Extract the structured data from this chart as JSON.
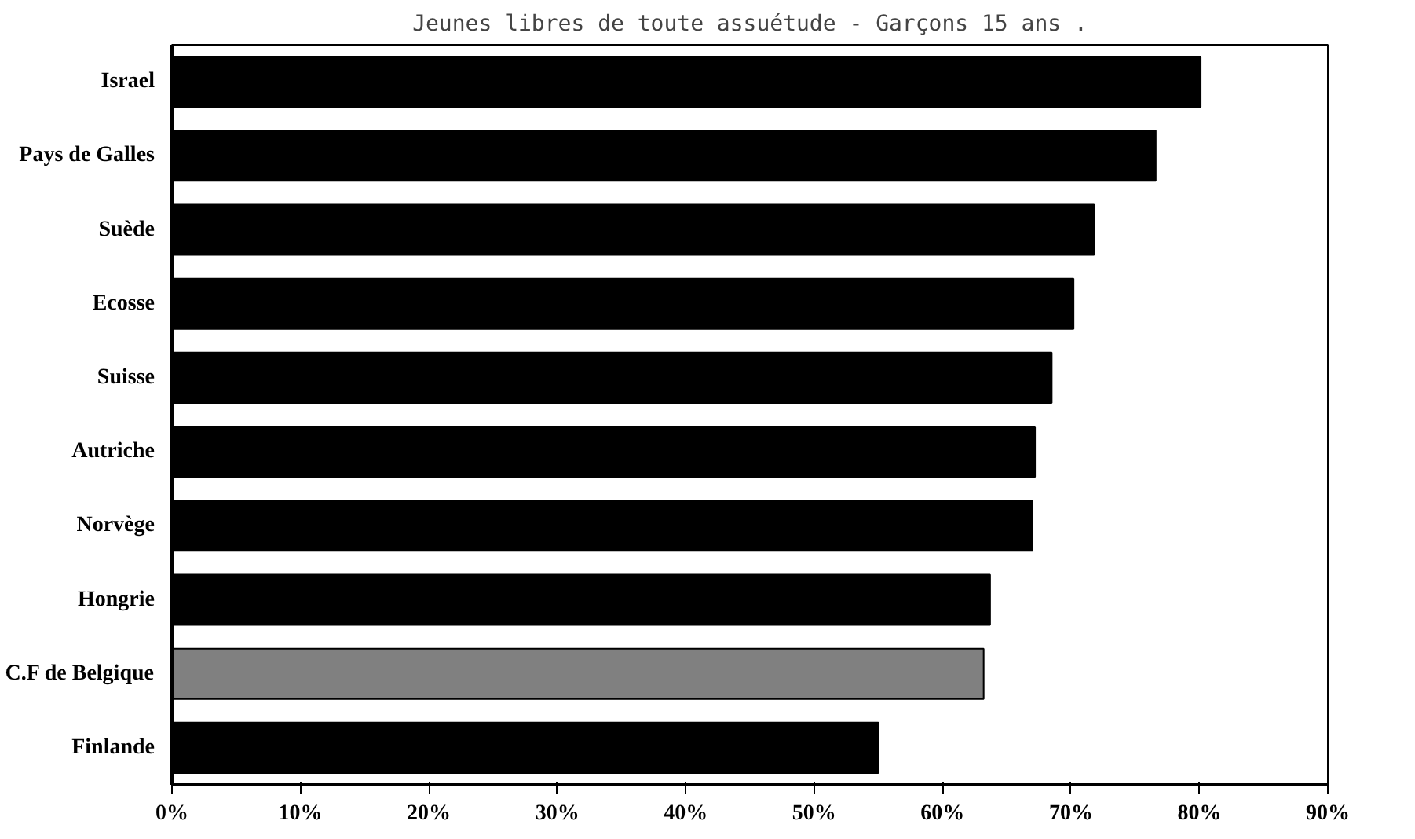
{
  "chart_data": {
    "type": "bar",
    "orientation": "horizontal",
    "title": "Jeunes libres de toute assuétude - Garçons 15 ans .",
    "categories": [
      "Israel",
      "Pays de Galles",
      "Suède",
      "Ecosse",
      "Suisse",
      "Autriche",
      "Norvège",
      "Hongrie",
      "C.F de Belgique",
      "Finlande"
    ],
    "values": [
      80.1,
      76.6,
      71.8,
      70.2,
      68.5,
      67.2,
      67.0,
      63.7,
      63.2,
      55.0
    ],
    "colors": [
      "#000000",
      "#000000",
      "#000000",
      "#000000",
      "#000000",
      "#000000",
      "#000000",
      "#000000",
      "#808080",
      "#000000"
    ],
    "xlim": [
      0,
      90
    ],
    "xticks": [
      {
        "value": 0,
        "label": "0%"
      },
      {
        "value": 10,
        "label": "10%"
      },
      {
        "value": 20,
        "label": "20%"
      },
      {
        "value": 30,
        "label": "30%"
      },
      {
        "value": 40,
        "label": "40%"
      },
      {
        "value": 50,
        "label": "50%"
      },
      {
        "value": 60,
        "label": "60%"
      },
      {
        "value": 70,
        "label": "70%"
      },
      {
        "value": 80,
        "label": "80%"
      },
      {
        "value": 90,
        "label": "90%"
      }
    ],
    "grid": false
  }
}
